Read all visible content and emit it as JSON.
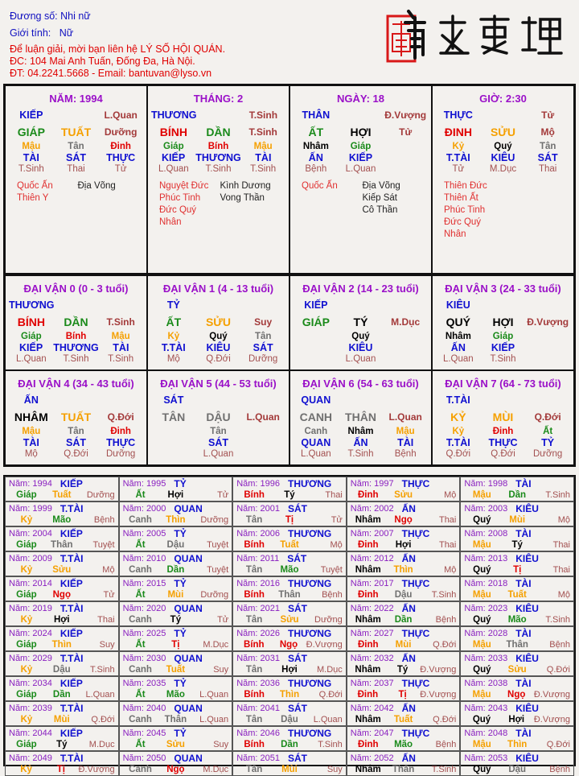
{
  "header": {
    "luong_so": "Đương số: Nhi nữ",
    "gioi_tinh": "Giới tính:   Nữ",
    "contact1": "Để luận giải, mời bạn liên hệ LÝ SỐ HỘI QUÁN.",
    "contact2": "ĐC: 104 Mai Anh Tuấn, Đống Đa, Hà Nội.",
    "contact3": "ĐT: 04.2241.5668 - Email: bantuvan@lyso.vn"
  },
  "logo": {
    "text": "南越數理",
    "seal_color": "#d81818"
  },
  "colors": {
    "wood": "#1a8a1a",
    "fire": "#e00000",
    "earth": "#f5a000",
    "metal": "#707070",
    "water": "#000000",
    "god": "#1010d0",
    "stage": "#a33a3a",
    "title": "#9a10c8"
  },
  "element_of": {
    "GIÁP": "wood",
    "ẤT": "wood",
    "BÍNH": "fire",
    "ĐINH": "fire",
    "MẬU": "earth",
    "KỶ": "earth",
    "CANH": "metal",
    "TÂN": "metal",
    "NHÂM": "water",
    "QUÝ": "water",
    "TÝ": "water",
    "HỢI": "water",
    "DẦN": "wood",
    "MÃO": "wood",
    "TỊ": "fire",
    "NGỌ": "fire",
    "THÌN": "earth",
    "TUẤT": "earth",
    "SỬU": "earth",
    "MÙI": "earth",
    "THÂN": "metal",
    "DẬU": "metal"
  },
  "pillars": [
    {
      "title": "NĂM: 1994",
      "top_god": "KIẾP",
      "top_right": "L.Quan",
      "stem": "GIÁP",
      "branch": "TUẤT",
      "stage": "Dưỡng",
      "hidden": [
        {
          "stem": "Mậu",
          "god": "TÀI",
          "stage": "T.Sinh"
        },
        {
          "stem": "Tân",
          "god": "SÁT",
          "stage": "Thai"
        },
        {
          "stem": "Đinh",
          "god": "THỰC",
          "stage": "Tử"
        }
      ],
      "stars_good": [
        "Quốc Ấn",
        "Thiên Y"
      ],
      "stars_bad": [
        "Địa Võng"
      ]
    },
    {
      "title": "THÁNG: 2",
      "top_god": "THƯƠNG",
      "top_right": "T.Sinh",
      "stem": "BÍNH",
      "branch": "DẦN",
      "stage": "T.Sinh",
      "hidden": [
        {
          "stem": "Giáp",
          "god": "KIẾP",
          "stage": "L.Quan"
        },
        {
          "stem": "Bính",
          "god": "THƯƠNG",
          "stage": "T.Sinh"
        },
        {
          "stem": "Mậu",
          "god": "TÀI",
          "stage": "T.Sinh"
        }
      ],
      "stars_good": [
        "Nguyệt Đức",
        "Phúc Tinh",
        "Đức Quý Nhân"
      ],
      "stars_bad": [
        "Kình Dương",
        "Vong Thần"
      ]
    },
    {
      "title": "NGÀY: 18",
      "top_god": "THÂN",
      "top_right": "Đ.Vượng",
      "stem": "ẤT",
      "branch": "HỢI",
      "stage": "Tử",
      "hidden": [
        {
          "stem": "Nhâm",
          "god": "ẤN",
          "stage": "Bệnh"
        },
        {
          "stem": "Giáp",
          "god": "KIẾP",
          "stage": "L.Quan"
        }
      ],
      "stars_good": [
        "Quốc Ấn"
      ],
      "stars_bad": [
        "Địa Võng",
        "Kiếp Sát",
        "Cô Thần"
      ]
    },
    {
      "title": "GIỜ: 2:30",
      "top_god": "THỰC",
      "top_right": "Tử",
      "stem": "ĐINH",
      "branch": "SỬU",
      "stage": "Mộ",
      "hidden": [
        {
          "stem": "Kỷ",
          "god": "T.TÀI",
          "stage": "Tử"
        },
        {
          "stem": "Quý",
          "god": "KIÊU",
          "stage": "M.Dục"
        },
        {
          "stem": "Tân",
          "god": "SÁT",
          "stage": "Thai"
        }
      ],
      "stars_good": [
        "Thiên Đức",
        "Thiên Ất",
        "Phúc Tinh",
        "Đức Quý Nhân"
      ],
      "stars_bad": []
    }
  ],
  "dai_van": [
    {
      "title": "ĐẠI VẬN 0 (0 - 3 tuổi)",
      "top_god": "THƯƠNG",
      "stem": "BÍNH",
      "branch": "DẦN",
      "stage": "T.Sinh",
      "hidden": [
        {
          "stem": "Giáp",
          "god": "KIẾP",
          "stage": "L.Quan"
        },
        {
          "stem": "Bính",
          "god": "THƯƠNG",
          "stage": "T.Sinh"
        },
        {
          "stem": "Mậu",
          "god": "TÀI",
          "stage": "T.Sinh"
        }
      ]
    },
    {
      "title": "ĐẠI VẬN 1 (4 - 13 tuổi)",
      "top_god": "TỶ",
      "stem": "ẤT",
      "branch": "SỬU",
      "stage": "Suy",
      "hidden": [
        {
          "stem": "Kỷ",
          "god": "T.TÀI",
          "stage": "Mộ"
        },
        {
          "stem": "Quý",
          "god": "KIÊU",
          "stage": "Q.Đới"
        },
        {
          "stem": "Tân",
          "god": "SÁT",
          "stage": "Dưỡng"
        }
      ]
    },
    {
      "title": "ĐẠI VẬN 2 (14 - 23 tuổi)",
      "top_god": "KIẾP",
      "stem": "GIÁP",
      "branch": "TÝ",
      "stage": "M.Dục",
      "hidden": [
        {
          "stem": "Quý",
          "god": "KIÊU",
          "stage": "L.Quan"
        }
      ]
    },
    {
      "title": "ĐẠI VẬN 3 (24 - 33 tuổi)",
      "top_god": "KIÊU",
      "stem": "QUÝ",
      "branch": "HỢI",
      "stage": "Đ.Vượng",
      "hidden": [
        {
          "stem": "Nhâm",
          "god": "ẤN",
          "stage": "L.Quan"
        },
        {
          "stem": "Giáp",
          "god": "KIẾP",
          "stage": "T.Sinh"
        }
      ]
    },
    {
      "title": "ĐẠI VẬN 4 (34 - 43 tuổi)",
      "top_god": "ẤN",
      "stem": "NHÂM",
      "branch": "TUẤT",
      "stage": "Q.Đới",
      "hidden": [
        {
          "stem": "Mậu",
          "god": "TÀI",
          "stage": "Mộ"
        },
        {
          "stem": "Tân",
          "god": "SÁT",
          "stage": "Q.Đới"
        },
        {
          "stem": "Đinh",
          "god": "THỰC",
          "stage": "Dưỡng"
        }
      ]
    },
    {
      "title": "ĐẠI VẬN 5 (44 - 53 tuổi)",
      "top_god": "SÁT",
      "stem": "TÂN",
      "branch": "DẬU",
      "stage": "L.Quan",
      "hidden": [
        {
          "stem": "Tân",
          "god": "SÁT",
          "stage": "L.Quan"
        }
      ]
    },
    {
      "title": "ĐẠI VẬN 6 (54 - 63 tuổi)",
      "top_god": "QUAN",
      "stem": "CANH",
      "branch": "THÂN",
      "stage": "L.Quan",
      "hidden": [
        {
          "stem": "Canh",
          "god": "QUAN",
          "stage": "L.Quan"
        },
        {
          "stem": "Nhâm",
          "god": "ẤN",
          "stage": "T.Sinh"
        },
        {
          "stem": "Mậu",
          "god": "TÀI",
          "stage": "Bệnh"
        }
      ]
    },
    {
      "title": "ĐẠI VẬN 7 (64 - 73 tuổi)",
      "top_god": "T.TÀI",
      "stem": "KỶ",
      "branch": "MÙI",
      "stage": "Q.Đới",
      "hidden": [
        {
          "stem": "Kỷ",
          "god": "T.TÀI",
          "stage": "Q.Đới"
        },
        {
          "stem": "Đinh",
          "god": "THỰC",
          "stage": "Q.Đới"
        },
        {
          "stem": "Ất",
          "god": "TỶ",
          "stage": "Dưỡng"
        }
      ]
    }
  ],
  "year_prefix": "Năm:",
  "years": [
    [
      "1994",
      "KIẾP",
      "Giáp",
      "Tuất",
      "Dưỡng"
    ],
    [
      "1995",
      "TỶ",
      "Ất",
      "Hợi",
      "Tử"
    ],
    [
      "1996",
      "THƯƠNG",
      "Bính",
      "Tý",
      "Thai"
    ],
    [
      "1997",
      "THỰC",
      "Đinh",
      "Sửu",
      "Mộ"
    ],
    [
      "1998",
      "TÀI",
      "Mậu",
      "Dần",
      "T.Sinh"
    ],
    [
      "1999",
      "T.TÀI",
      "Kỷ",
      "Mão",
      "Bệnh"
    ],
    [
      "2000",
      "QUAN",
      "Canh",
      "Thìn",
      "Dưỡng"
    ],
    [
      "2001",
      "SÁT",
      "Tân",
      "Tị",
      "Tử"
    ],
    [
      "2002",
      "ẤN",
      "Nhâm",
      "Ngọ",
      "Thai"
    ],
    [
      "2003",
      "KIÊU",
      "Quý",
      "Mùi",
      "Mộ"
    ],
    [
      "2004",
      "KIẾP",
      "Giáp",
      "Thân",
      "Tuyệt"
    ],
    [
      "2005",
      "TỶ",
      "Ất",
      "Dậu",
      "Tuyệt"
    ],
    [
      "2006",
      "THƯƠNG",
      "Bính",
      "Tuất",
      "Mộ"
    ],
    [
      "2007",
      "THỰC",
      "Đinh",
      "Hợi",
      "Thai"
    ],
    [
      "2008",
      "TÀI",
      "Mậu",
      "Tý",
      "Thai"
    ],
    [
      "2009",
      "T.TÀI",
      "Kỷ",
      "Sửu",
      "Mộ"
    ],
    [
      "2010",
      "QUAN",
      "Canh",
      "Dần",
      "Tuyệt"
    ],
    [
      "2011",
      "SÁT",
      "Tân",
      "Mão",
      "Tuyệt"
    ],
    [
      "2012",
      "ẤN",
      "Nhâm",
      "Thìn",
      "Mộ"
    ],
    [
      "2013",
      "KIÊU",
      "Quý",
      "Tị",
      "Thai"
    ],
    [
      "2014",
      "KIẾP",
      "Giáp",
      "Ngọ",
      "Tử"
    ],
    [
      "2015",
      "TỶ",
      "Ất",
      "Mùi",
      "Dưỡng"
    ],
    [
      "2016",
      "THƯƠNG",
      "Bính",
      "Thân",
      "Bệnh"
    ],
    [
      "2017",
      "THỰC",
      "Đinh",
      "Dậu",
      "T.Sinh"
    ],
    [
      "2018",
      "TÀI",
      "Mậu",
      "Tuất",
      "Mộ"
    ],
    [
      "2019",
      "T.TÀI",
      "Kỷ",
      "Hợi",
      "Thai"
    ],
    [
      "2020",
      "QUAN",
      "Canh",
      "Tý",
      "Tử"
    ],
    [
      "2021",
      "SÁT",
      "Tân",
      "Sửu",
      "Dưỡng"
    ],
    [
      "2022",
      "ẤN",
      "Nhâm",
      "Dần",
      "Bệnh"
    ],
    [
      "2023",
      "KIÊU",
      "Quý",
      "Mão",
      "T.Sinh"
    ],
    [
      "2024",
      "KIẾP",
      "Giáp",
      "Thìn",
      "Suy"
    ],
    [
      "2025",
      "TỶ",
      "Ất",
      "Tị",
      "M.Dục"
    ],
    [
      "2026",
      "THƯƠNG",
      "Bính",
      "Ngọ",
      "Đ.Vượng"
    ],
    [
      "2027",
      "THỰC",
      "Đinh",
      "Mùi",
      "Q.Đới"
    ],
    [
      "2028",
      "TÀI",
      "Mậu",
      "Thân",
      "Bệnh"
    ],
    [
      "2029",
      "T.TÀI",
      "Kỷ",
      "Dậu",
      "T.Sinh"
    ],
    [
      "2030",
      "QUAN",
      "Canh",
      "Tuất",
      "Suy"
    ],
    [
      "2031",
      "SÁT",
      "Tân",
      "Hợi",
      "M.Dục"
    ],
    [
      "2032",
      "ẤN",
      "Nhâm",
      "Tý",
      "Đ.Vượng"
    ],
    [
      "2033",
      "KIÊU",
      "Quý",
      "Sửu",
      "Q.Đới"
    ],
    [
      "2034",
      "KIẾP",
      "Giáp",
      "Dần",
      "L.Quan"
    ],
    [
      "2035",
      "TỶ",
      "Ất",
      "Mão",
      "L.Quan"
    ],
    [
      "2036",
      "THƯƠNG",
      "Bính",
      "Thìn",
      "Q.Đới"
    ],
    [
      "2037",
      "THỰC",
      "Đinh",
      "Tị",
      "Đ.Vượng"
    ],
    [
      "2038",
      "TÀI",
      "Mậu",
      "Ngọ",
      "Đ.Vượng"
    ],
    [
      "2039",
      "T.TÀI",
      "Kỷ",
      "Mùi",
      "Q.Đới"
    ],
    [
      "2040",
      "QUAN",
      "Canh",
      "Thân",
      "L.Quan"
    ],
    [
      "2041",
      "SÁT",
      "Tân",
      "Dậu",
      "L.Quan"
    ],
    [
      "2042",
      "ẤN",
      "Nhâm",
      "Tuất",
      "Q.Đới"
    ],
    [
      "2043",
      "KIÊU",
      "Quý",
      "Hợi",
      "Đ.Vượng"
    ],
    [
      "2044",
      "KIẾP",
      "Giáp",
      "Tý",
      "M.Dục"
    ],
    [
      "2045",
      "TỶ",
      "Ất",
      "Sửu",
      "Suy"
    ],
    [
      "2046",
      "THƯƠNG",
      "Bính",
      "Dần",
      "T.Sinh"
    ],
    [
      "2047",
      "THỰC",
      "Đinh",
      "Mão",
      "Bệnh"
    ],
    [
      "2048",
      "TÀI",
      "Mậu",
      "Thìn",
      "Q.Đới"
    ],
    [
      "2049",
      "T.TÀI",
      "Kỷ",
      "Tị",
      "Đ.Vượng"
    ],
    [
      "2050",
      "QUAN",
      "Canh",
      "Ngọ",
      "M.Dục"
    ],
    [
      "2051",
      "SÁT",
      "Tân",
      "Mùi",
      "Suy"
    ],
    [
      "2052",
      "ẤN",
      "Nhâm",
      "Thân",
      "T.Sinh"
    ],
    [
      "2053",
      "KIÊU",
      "Quý",
      "Dậu",
      "Bệnh"
    ]
  ]
}
